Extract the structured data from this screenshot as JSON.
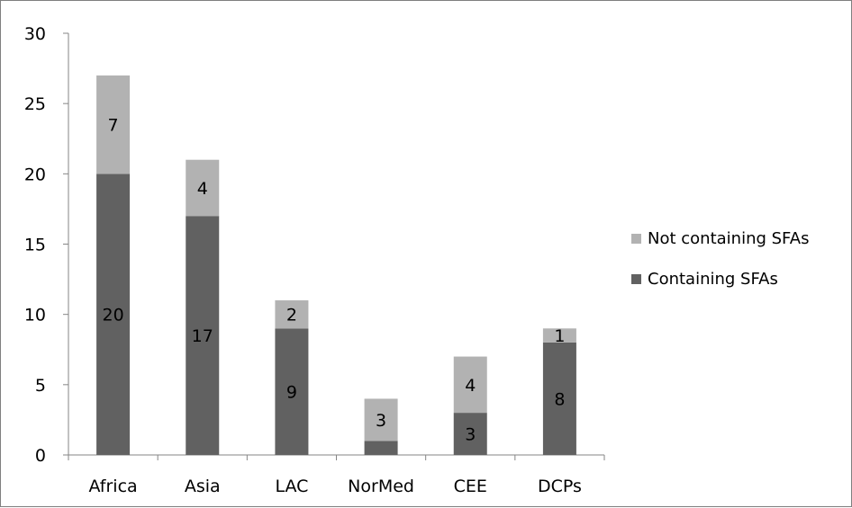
{
  "chart_data": {
    "type": "bar",
    "stacked": true,
    "title": "",
    "xlabel": "",
    "ylabel": "",
    "ylim": [
      0,
      30
    ],
    "yticks": [
      0,
      5,
      10,
      15,
      20,
      25,
      30
    ],
    "grid": false,
    "legend_position": "right",
    "categories": [
      "Africa",
      "Asia",
      "LAC",
      "NorMed",
      "CEE",
      "DCPs"
    ],
    "series": [
      {
        "name": "Containing SFAs",
        "color": "#616161",
        "values": [
          20,
          17,
          9,
          1,
          3,
          8
        ],
        "labels": [
          "20",
          "17",
          "9",
          "",
          "3",
          "8"
        ]
      },
      {
        "name": "Not containing SFAs",
        "color": "#b2b2b2",
        "values": [
          7,
          4,
          2,
          3,
          4,
          1
        ],
        "labels": [
          "7",
          "4",
          "2",
          "3",
          "4",
          "1"
        ]
      }
    ],
    "legend_order": [
      1,
      0
    ]
  }
}
